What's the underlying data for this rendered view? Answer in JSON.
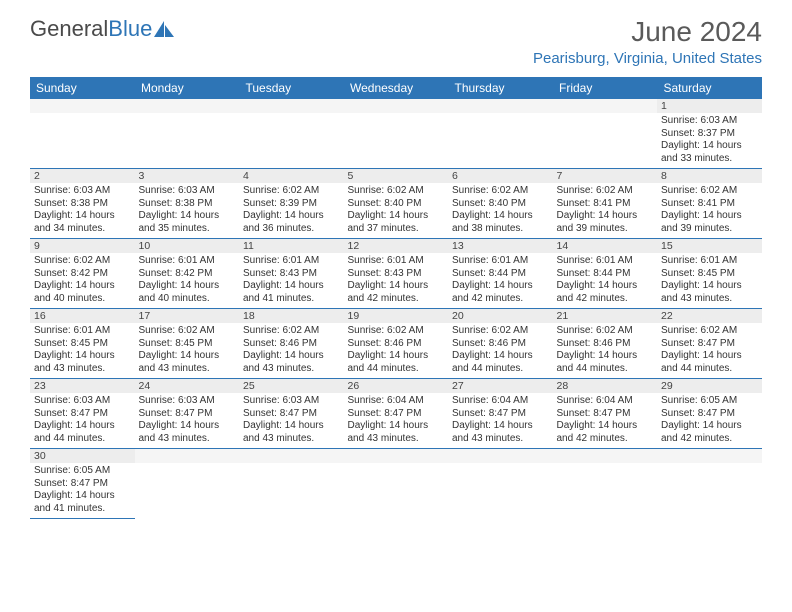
{
  "logo": {
    "text_left": "General",
    "text_right": "Blue"
  },
  "header": {
    "month_title": "June 2024",
    "location": "Pearisburg, Virginia, United States"
  },
  "colors": {
    "header_bg": "#2e75b6",
    "header_text": "#ffffff",
    "daynum_bg": "#ededed",
    "border": "#2e75b6",
    "text": "#333333",
    "logo_gray": "#4a4a4a",
    "logo_blue": "#2e75b6"
  },
  "weekdays": [
    "Sunday",
    "Monday",
    "Tuesday",
    "Wednesday",
    "Thursday",
    "Friday",
    "Saturday"
  ],
  "weeks": [
    {
      "nums": [
        "",
        "",
        "",
        "",
        "",
        "",
        "1"
      ],
      "data": [
        "",
        "",
        "",
        "",
        "",
        "",
        "Sunrise: 6:03 AM\nSunset: 8:37 PM\nDaylight: 14 hours and 33 minutes."
      ]
    },
    {
      "nums": [
        "2",
        "3",
        "4",
        "5",
        "6",
        "7",
        "8"
      ],
      "data": [
        "Sunrise: 6:03 AM\nSunset: 8:38 PM\nDaylight: 14 hours and 34 minutes.",
        "Sunrise: 6:03 AM\nSunset: 8:38 PM\nDaylight: 14 hours and 35 minutes.",
        "Sunrise: 6:02 AM\nSunset: 8:39 PM\nDaylight: 14 hours and 36 minutes.",
        "Sunrise: 6:02 AM\nSunset: 8:40 PM\nDaylight: 14 hours and 37 minutes.",
        "Sunrise: 6:02 AM\nSunset: 8:40 PM\nDaylight: 14 hours and 38 minutes.",
        "Sunrise: 6:02 AM\nSunset: 8:41 PM\nDaylight: 14 hours and 39 minutes.",
        "Sunrise: 6:02 AM\nSunset: 8:41 PM\nDaylight: 14 hours and 39 minutes."
      ]
    },
    {
      "nums": [
        "9",
        "10",
        "11",
        "12",
        "13",
        "14",
        "15"
      ],
      "data": [
        "Sunrise: 6:02 AM\nSunset: 8:42 PM\nDaylight: 14 hours and 40 minutes.",
        "Sunrise: 6:01 AM\nSunset: 8:42 PM\nDaylight: 14 hours and 40 minutes.",
        "Sunrise: 6:01 AM\nSunset: 8:43 PM\nDaylight: 14 hours and 41 minutes.",
        "Sunrise: 6:01 AM\nSunset: 8:43 PM\nDaylight: 14 hours and 42 minutes.",
        "Sunrise: 6:01 AM\nSunset: 8:44 PM\nDaylight: 14 hours and 42 minutes.",
        "Sunrise: 6:01 AM\nSunset: 8:44 PM\nDaylight: 14 hours and 42 minutes.",
        "Sunrise: 6:01 AM\nSunset: 8:45 PM\nDaylight: 14 hours and 43 minutes."
      ]
    },
    {
      "nums": [
        "16",
        "17",
        "18",
        "19",
        "20",
        "21",
        "22"
      ],
      "data": [
        "Sunrise: 6:01 AM\nSunset: 8:45 PM\nDaylight: 14 hours and 43 minutes.",
        "Sunrise: 6:02 AM\nSunset: 8:45 PM\nDaylight: 14 hours and 43 minutes.",
        "Sunrise: 6:02 AM\nSunset: 8:46 PM\nDaylight: 14 hours and 43 minutes.",
        "Sunrise: 6:02 AM\nSunset: 8:46 PM\nDaylight: 14 hours and 44 minutes.",
        "Sunrise: 6:02 AM\nSunset: 8:46 PM\nDaylight: 14 hours and 44 minutes.",
        "Sunrise: 6:02 AM\nSunset: 8:46 PM\nDaylight: 14 hours and 44 minutes.",
        "Sunrise: 6:02 AM\nSunset: 8:47 PM\nDaylight: 14 hours and 44 minutes."
      ]
    },
    {
      "nums": [
        "23",
        "24",
        "25",
        "26",
        "27",
        "28",
        "29"
      ],
      "data": [
        "Sunrise: 6:03 AM\nSunset: 8:47 PM\nDaylight: 14 hours and 44 minutes.",
        "Sunrise: 6:03 AM\nSunset: 8:47 PM\nDaylight: 14 hours and 43 minutes.",
        "Sunrise: 6:03 AM\nSunset: 8:47 PM\nDaylight: 14 hours and 43 minutes.",
        "Sunrise: 6:04 AM\nSunset: 8:47 PM\nDaylight: 14 hours and 43 minutes.",
        "Sunrise: 6:04 AM\nSunset: 8:47 PM\nDaylight: 14 hours and 43 minutes.",
        "Sunrise: 6:04 AM\nSunset: 8:47 PM\nDaylight: 14 hours and 42 minutes.",
        "Sunrise: 6:05 AM\nSunset: 8:47 PM\nDaylight: 14 hours and 42 minutes."
      ]
    },
    {
      "nums": [
        "30",
        "",
        "",
        "",
        "",
        "",
        ""
      ],
      "data": [
        "Sunrise: 6:05 AM\nSunset: 8:47 PM\nDaylight: 14 hours and 41 minutes.",
        "",
        "",
        "",
        "",
        "",
        ""
      ]
    }
  ]
}
